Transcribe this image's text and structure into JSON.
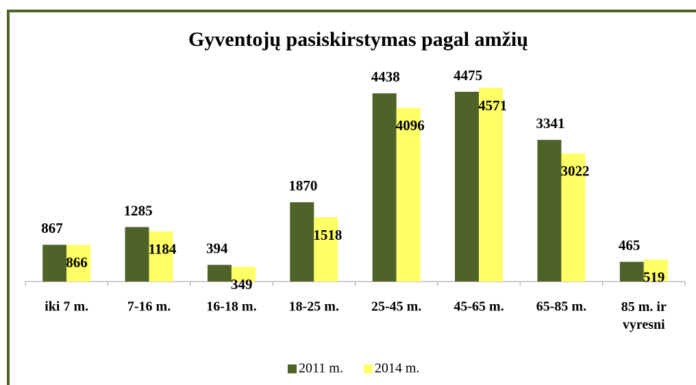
{
  "chart_data": {
    "type": "bar",
    "title": "Gyventojų pasiskirstymas pagal amžių",
    "categories": [
      "iki 7 m.",
      "7-16 m.",
      "16-18 m.",
      "18-25 m.",
      "25-45 m.",
      "45-65 m.",
      "65-85 m.",
      "85 m. ir vyresni"
    ],
    "series": [
      {
        "name": "2011 m.",
        "color": "#4f6228",
        "values": [
          867,
          1285,
          394,
          1870,
          4438,
          4475,
          3341,
          465
        ]
      },
      {
        "name": "2014 m.",
        "color": "#ffff66",
        "values": [
          866,
          1184,
          349,
          1518,
          4096,
          4571,
          3022,
          519
        ]
      }
    ]
  }
}
